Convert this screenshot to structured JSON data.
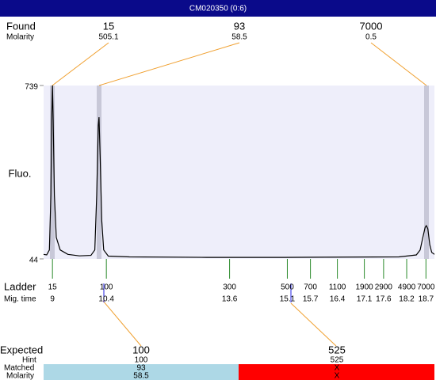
{
  "header": {
    "title": "CM020350 (0:6)"
  },
  "found": {
    "label": "Found",
    "molarity_label": "Molarity",
    "peaks": [
      {
        "size": 15,
        "molarity": 505.1
      },
      {
        "size": 93,
        "molarity": 58.5
      },
      {
        "size": 7000,
        "molarity": 0.5
      }
    ]
  },
  "chart_data": {
    "type": "line",
    "ylabel": "Fluo.",
    "color": "#000000",
    "ylim": [
      44,
      739
    ],
    "yticks": [
      44,
      739
    ],
    "xlim": [
      8.77,
      18.92
    ],
    "x": [
      8.77,
      8.85,
      8.92,
      8.96,
      8.98,
      9.0,
      9.02,
      9.05,
      9.1,
      9.2,
      9.4,
      9.7,
      10.0,
      10.1,
      10.15,
      10.19,
      10.21,
      10.24,
      10.28,
      10.33,
      10.45,
      11,
      13,
      15,
      18,
      18.45,
      18.55,
      18.62,
      18.68,
      18.71,
      18.75,
      18.8,
      18.85,
      18.92
    ],
    "values": [
      62,
      60,
      80,
      300,
      600,
      739,
      600,
      300,
      130,
      80,
      62,
      56,
      58,
      80,
      300,
      580,
      612,
      450,
      200,
      80,
      55,
      52,
      50,
      50,
      52,
      60,
      80,
      130,
      170,
      177,
      165,
      100,
      70,
      62
    ]
  },
  "ladder": {
    "label": "Ladder",
    "time_label": "Mig. time",
    "sizes": [
      15,
      100,
      300,
      500,
      700,
      1100,
      1900,
      2900,
      4900,
      7000
    ],
    "times": [
      9,
      10.4,
      13.6,
      15.1,
      15.7,
      16.4,
      17.1,
      17.6,
      18.2,
      18.7
    ]
  },
  "expected": {
    "label": "Expected",
    "hint_label": "Hint",
    "matched_label": "Matched",
    "molarity_label": "Molarity",
    "items": [
      {
        "expected": 100,
        "hint": 100,
        "matched": 93,
        "molarity": 58.5
      },
      {
        "expected": 525,
        "hint": 525,
        "matched": "X",
        "molarity": "X"
      }
    ]
  }
}
